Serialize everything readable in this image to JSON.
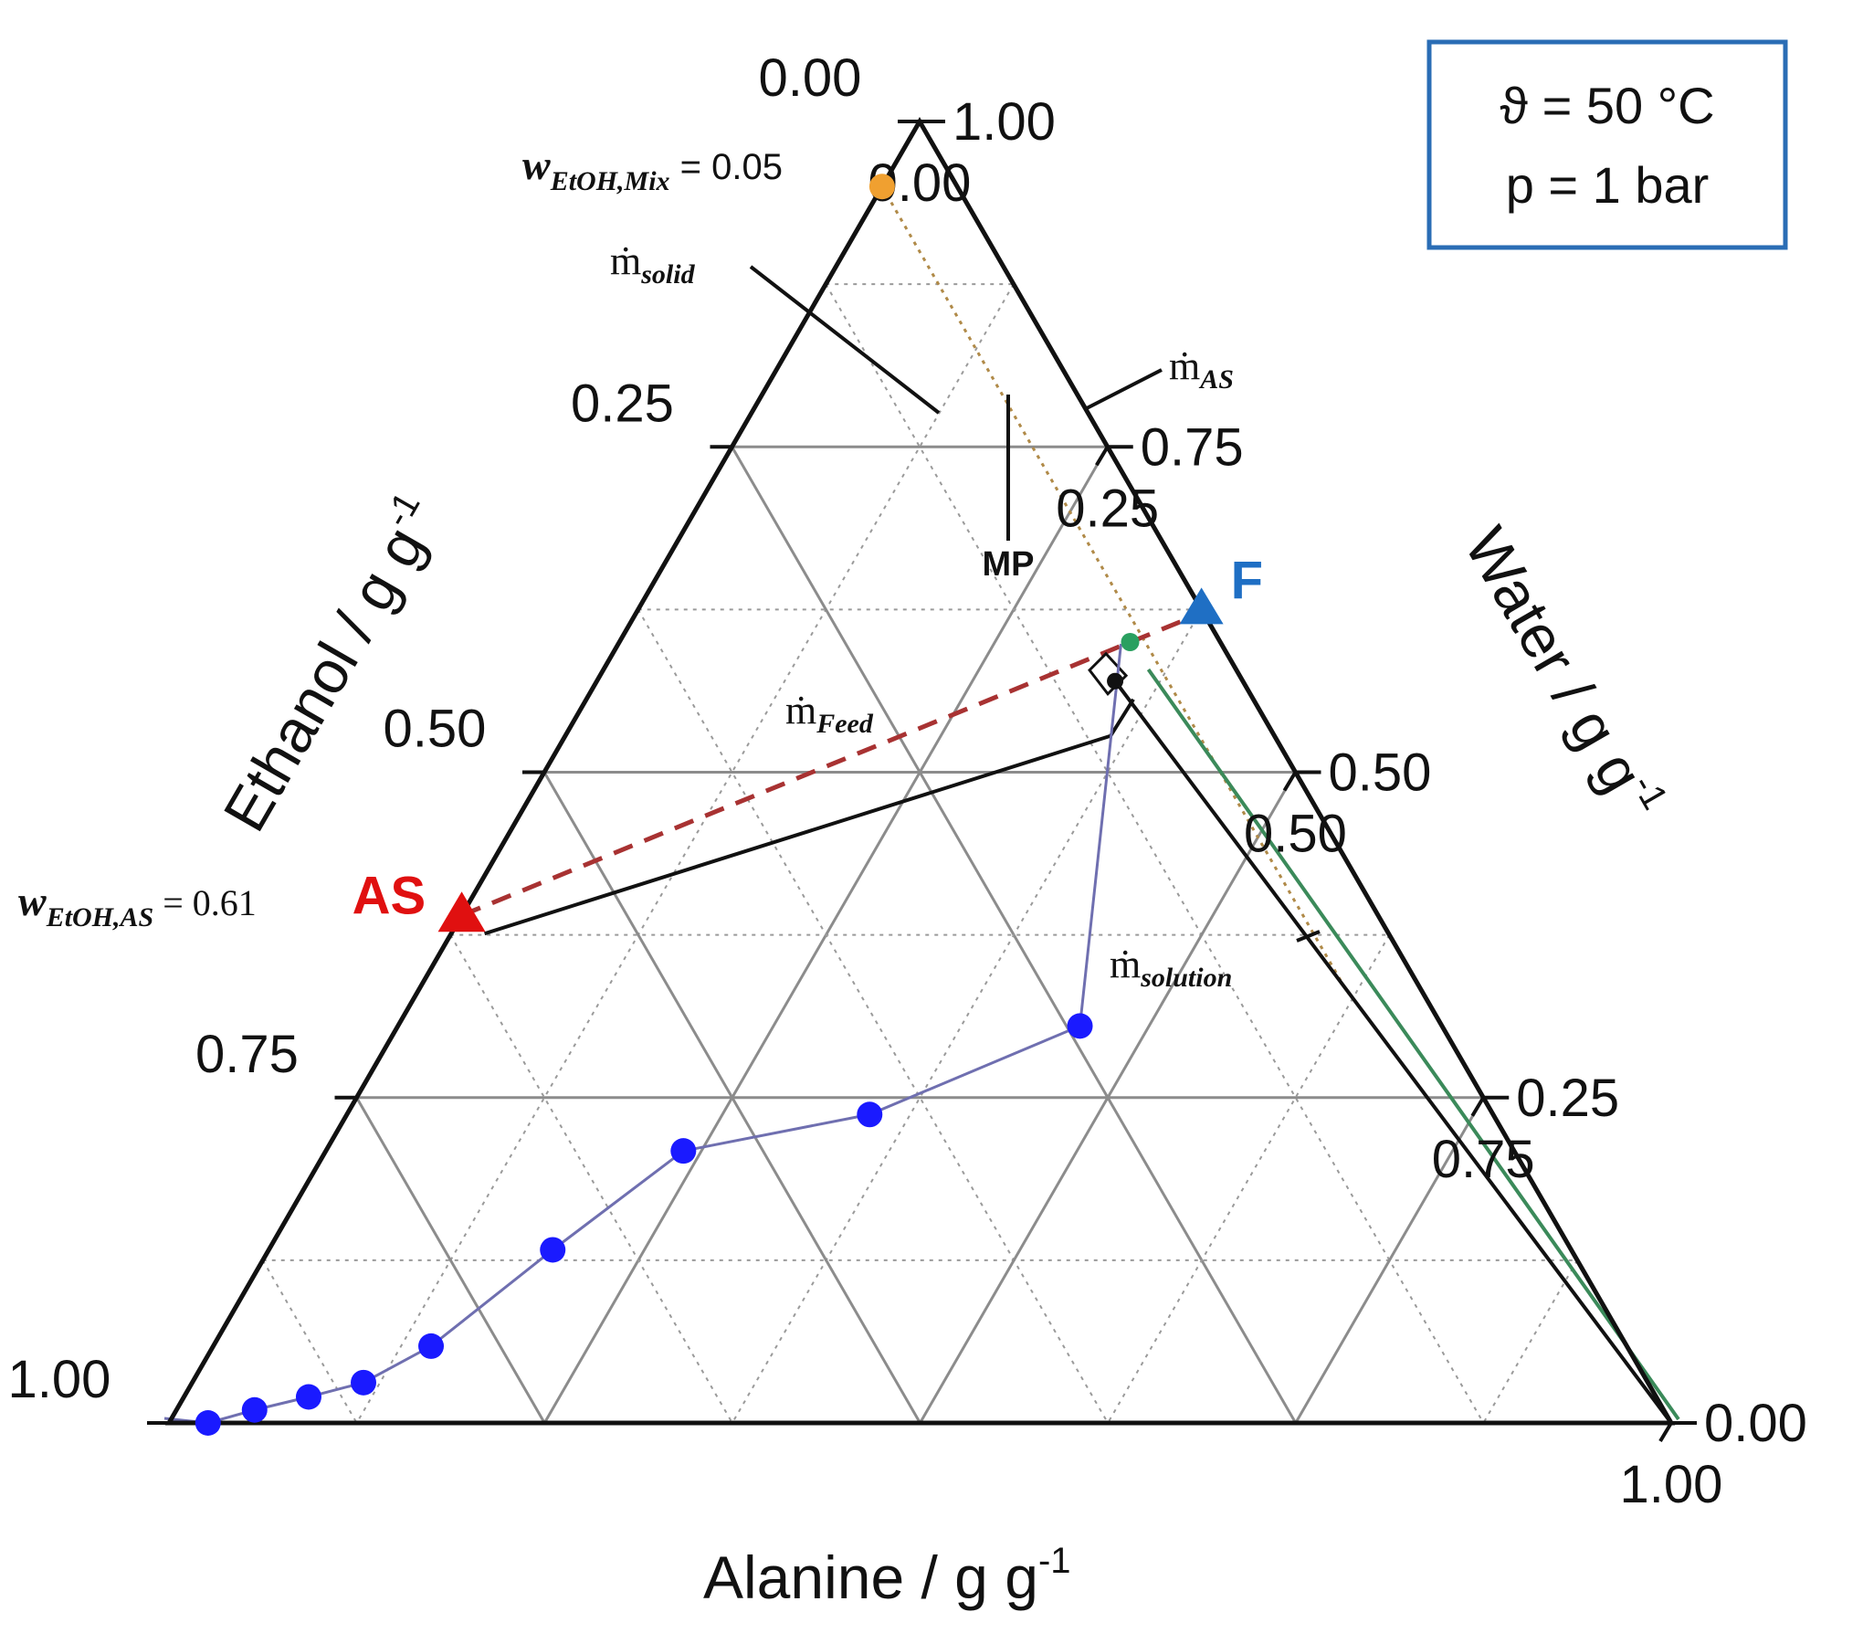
{
  "chart_data": {
    "type": "scatter",
    "subtype": "ternary",
    "axes": {
      "bottom": {
        "title": "Alanine / g g",
        "title_sup": "-1",
        "ticks": [
          "0.00",
          "0.25",
          "0.50",
          "0.75",
          "1.00"
        ]
      },
      "left": {
        "title": "Ethanol / g g",
        "title_sup": "-1",
        "ticks": [
          "0.00",
          "0.25",
          "0.50",
          "0.75",
          "1.00"
        ]
      },
      "right": {
        "title": "Water / g g",
        "title_sup": "-1",
        "ticks": [
          "0.00",
          "0.25",
          "0.50",
          "0.75",
          "1.00"
        ]
      }
    },
    "grid": true,
    "conditions": {
      "temperature": "ϑ = 50 °C",
      "pressure": "p = 1 bar"
    },
    "colors": {
      "solubility": "#1a1aff",
      "solubility_line": "#6f6fb0",
      "feed": "#1f6fc4",
      "antisolvent": "#e01010",
      "mix_point": "#f0a030",
      "green_point": "#2aa060",
      "green_line": "#3b8a5a",
      "dashed_line": "#a83232",
      "mix_label": "#b08a48",
      "as_label": "#a83232",
      "box_border": "#2a6db5"
    },
    "solubility_curve": [
      {
        "alanine": 0.026,
        "ethanol": 0.974
      },
      {
        "alanine": 0.052,
        "ethanol": 0.938
      },
      {
        "alanine": 0.083,
        "ethanol": 0.897
      },
      {
        "alanine": 0.114,
        "ethanol": 0.855
      },
      {
        "alanine": 0.145,
        "ethanol": 0.796
      },
      {
        "alanine": 0.189,
        "ethanol": 0.678
      },
      {
        "alanine": 0.238,
        "ethanol": 0.553
      },
      {
        "alanine": 0.348,
        "ethanol": 0.415
      },
      {
        "alanine": 0.454,
        "ethanol": 0.241
      }
    ],
    "points": {
      "F": {
        "label": "F",
        "alanine": 0.375,
        "ethanol": 0.0
      },
      "AS": {
        "label": "AS",
        "alanine": 0.0,
        "ethanol": 0.61
      },
      "mix": {
        "alanine": 0.0,
        "ethanol": 0.05
      },
      "green": {
        "alanine": 0.34,
        "ethanol": 0.06
      },
      "MP": {
        "alanine": 0.345,
        "ethanol": 0.085
      }
    },
    "annotations": {
      "mix_label": {
        "prefix": "w",
        "sub": "EtOH,Mix",
        "suffix": " = 0.05"
      },
      "as_label": {
        "prefix": "w",
        "sub": "EtOH,AS",
        "suffix": " = 0.61"
      },
      "m_solid": {
        "prefix": "ṁ",
        "sub": "solid"
      },
      "m_AS": {
        "prefix": "ṁ",
        "sub": "AS"
      },
      "m_feed": {
        "prefix": "ṁ",
        "sub": "Feed"
      },
      "m_solution": {
        "prefix": "ṁ",
        "sub": "solution"
      },
      "MP": "MP"
    }
  }
}
